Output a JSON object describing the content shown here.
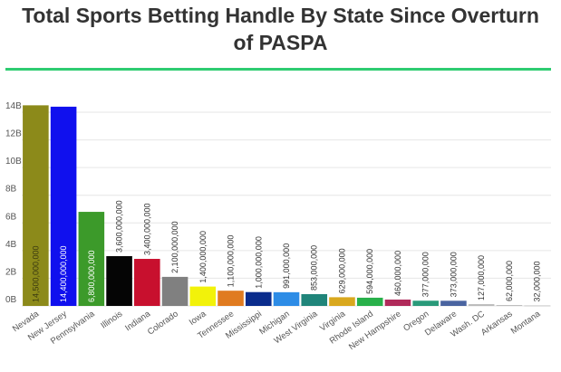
{
  "title_line1": "Total Sports Betting Handle By State Since Overturn",
  "title_line2": "of PASPA",
  "accent_color": "#2ecc71",
  "chart_data": {
    "type": "bar",
    "title": "Total Sports Betting Handle By State Since Overturn of PASPA",
    "xlabel": "",
    "ylabel": "",
    "ylim": [
      0,
      14000000000
    ],
    "yticks": [
      0,
      2000000000,
      4000000000,
      6000000000,
      8000000000,
      10000000000,
      12000000000,
      14000000000
    ],
    "ytick_labels": [
      "0B",
      "2B",
      "4B",
      "6B",
      "8B",
      "10B",
      "12B",
      "14B"
    ],
    "grid": true,
    "legend": "none",
    "categories": [
      "Nevada",
      "New Jersey",
      "Pennsylvania",
      "Illinois",
      "Indiana",
      "Colorado",
      "Iowa",
      "Tennessee",
      "Mississippi",
      "Michigan",
      "West Virginia",
      "Virginia",
      "Rhode Island",
      "New Hampshire",
      "Oregon",
      "Delaware",
      "Wash. DC",
      "Arkansas",
      "Montana"
    ],
    "values": [
      14500000000,
      14400000000,
      6800000000,
      3600000000,
      3400000000,
      2100000000,
      1400000000,
      1100000000,
      1000000000,
      991000000,
      853000000,
      629000000,
      594000000,
      460000000,
      377000000,
      373000000,
      127000000,
      62000000,
      32000000
    ],
    "data_labels": [
      "14,500,000,000",
      "14,400,000,000",
      "6,800,000,000",
      "3,600,000,000",
      "3,400,000,000",
      "2,100,000,000",
      "1,400,000,000",
      "1,100,000,000",
      "1,000,000,000",
      "991,000,000",
      "853,000,000",
      "629,000,000",
      "594,000,000",
      "460,000,000",
      "377,000,000",
      "373,000,000",
      "127,000,000",
      "62,000,000",
      "32,000,000"
    ],
    "colors": [
      "#8c8a1a",
      "#1010ee",
      "#3c9a2a",
      "#050505",
      "#c8102e",
      "#808080",
      "#f2f20a",
      "#e07b20",
      "#0a2c8c",
      "#2d8ce6",
      "#20857a",
      "#d9a81e",
      "#28b04a",
      "#b02a5a",
      "#2a9a7a",
      "#4a64a0",
      "#bbbbbb",
      "#bbbbbb",
      "#bbbbbb"
    ],
    "label_inside": [
      true,
      true,
      true,
      false,
      false,
      false,
      false,
      false,
      false,
      false,
      false,
      false,
      false,
      false,
      false,
      false,
      false,
      false,
      false
    ]
  }
}
